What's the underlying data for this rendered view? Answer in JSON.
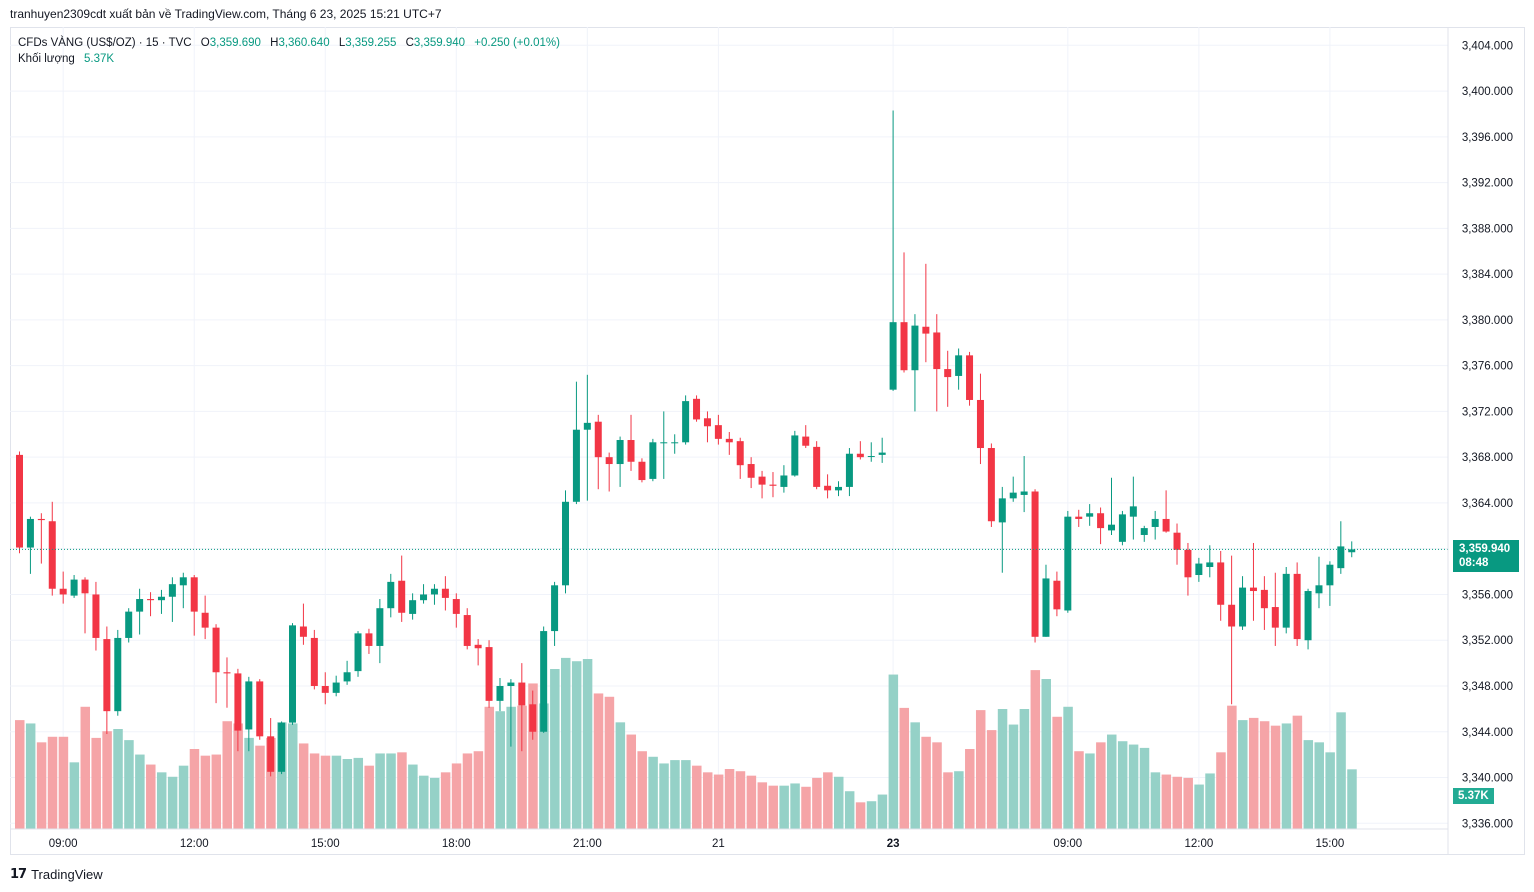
{
  "header": {
    "published_by": "tranhuyen2309cdt xuất bản về TradingView.com, Tháng 6 23, 2025 15:21 UTC+7"
  },
  "legend": {
    "symbol": "CFDs VÀNG (US$/OZ) · 15 · TVC",
    "open_label": "O",
    "open": "3,359.690",
    "high_label": "H",
    "high": "3,360.640",
    "low_label": "L",
    "low": "3,359.255",
    "close_label": "C",
    "close": "3,359.940",
    "change": "+0.250 (+0.01%)",
    "volume_label": "Khối lượng",
    "volume": "5.37K"
  },
  "last_price": {
    "price": "3,359.940",
    "countdown": "08:48"
  },
  "volume_tag": "5.37K",
  "footer": {
    "brand": "TradingView",
    "logo_icon": "tradingview-logo-icon"
  },
  "colors": {
    "up": "#089981",
    "down": "#f23645",
    "volume_up": "#95d1c7",
    "volume_down": "#f5a4a7",
    "grid": "#f0f3fa"
  },
  "chart_data": {
    "type": "candlestick",
    "interval": "15",
    "y_axis": {
      "ticks": [
        3336,
        3340,
        3344,
        3348,
        3352,
        3356,
        3360,
        3364,
        3368,
        3372,
        3376,
        3380,
        3384,
        3388,
        3392,
        3396,
        3400,
        3404
      ],
      "tick_labels": [
        "3,336.000",
        "3,340.000",
        "3,344.000",
        "3,348.000",
        "3,352.000",
        "3,356.000",
        "3,360.000",
        "3,364.000",
        "3,368.000",
        "3,372.000",
        "3,376.000",
        "3,380.000",
        "3,384.000",
        "3,388.000",
        "3,392.000",
        "3,396.000",
        "3,400.000",
        "3,404.000"
      ],
      "range": [
        3335.5,
        3405.6
      ]
    },
    "x_axis": {
      "labels": [
        {
          "text": "09:00",
          "index": 4
        },
        {
          "text": "12:00",
          "index": 16
        },
        {
          "text": "15:00",
          "index": 28
        },
        {
          "text": "18:00",
          "index": 40
        },
        {
          "text": "21:00",
          "index": 52
        },
        {
          "text": "21",
          "index": 64
        },
        {
          "text": "23",
          "index": 80,
          "bold": true
        },
        {
          "text": "09:00",
          "index": 96
        },
        {
          "text": "12:00",
          "index": 108
        },
        {
          "text": "15:00",
          "index": 120
        }
      ]
    },
    "grid": true,
    "volume_max": 18000,
    "candles": [
      [
        3368.2,
        3368.5,
        3359.6,
        3360.1,
        9800
      ],
      [
        3360.1,
        3362.8,
        3357.8,
        3362.6,
        9500
      ],
      [
        3362.6,
        3363.1,
        3358.7,
        3362.5,
        7800
      ],
      [
        3362.4,
        3364.1,
        3355.9,
        3356.5,
        8300
      ],
      [
        3356.5,
        3358.0,
        3355.2,
        3356.0,
        8300
      ],
      [
        3355.9,
        3357.7,
        3355.7,
        3357.3,
        6000
      ],
      [
        3357.3,
        3357.5,
        3352.6,
        3356.1,
        11000
      ],
      [
        3356.0,
        3357.1,
        3351.1,
        3352.2,
        8200
      ],
      [
        3352.1,
        3353.2,
        3343.8,
        3345.8,
        8800
      ],
      [
        3345.8,
        3352.9,
        3345.4,
        3352.2,
        9000
      ],
      [
        3352.2,
        3354.8,
        3351.8,
        3354.5,
        8000
      ],
      [
        3354.5,
        3356.5,
        3352.5,
        3355.6,
        6700
      ],
      [
        3355.6,
        3356.2,
        3354.1,
        3355.5,
        5800
      ],
      [
        3355.5,
        3356.4,
        3354.3,
        3355.8,
        5100
      ],
      [
        3355.8,
        3357.5,
        3353.6,
        3356.9,
        4700
      ],
      [
        3356.8,
        3357.9,
        3354.8,
        3357.5,
        5700
      ],
      [
        3357.5,
        3357.7,
        3352.4,
        3354.5,
        7200
      ],
      [
        3354.4,
        3355.9,
        3352.1,
        3353.1,
        6600
      ],
      [
        3353.1,
        3353.4,
        3346.5,
        3349.2,
        6700
      ],
      [
        3349.2,
        3350.5,
        3346.1,
        3349.1,
        9700
      ],
      [
        3349.1,
        3349.5,
        3342.3,
        3344.1,
        9500
      ],
      [
        3344.2,
        3348.8,
        3342.3,
        3348.4,
        8200
      ],
      [
        3348.4,
        3348.6,
        3343.3,
        3343.6,
        7500
      ],
      [
        3343.6,
        3345.2,
        3340.1,
        3340.5,
        8200
      ],
      [
        3340.5,
        3344.9,
        3340.3,
        3344.8,
        9600
      ],
      [
        3344.8,
        3353.5,
        3344.6,
        3353.3,
        9500
      ],
      [
        3353.2,
        3355.2,
        3351.6,
        3352.3,
        7700
      ],
      [
        3352.2,
        3352.9,
        3347.7,
        3348.0,
        6800
      ],
      [
        3348.0,
        3349.2,
        3346.4,
        3347.4,
        6600
      ],
      [
        3347.4,
        3348.9,
        3347.1,
        3348.3,
        6600
      ],
      [
        3348.4,
        3350.2,
        3348.1,
        3349.2,
        6300
      ],
      [
        3349.3,
        3352.8,
        3348.8,
        3352.6,
        6400
      ],
      [
        3352.6,
        3353.0,
        3350.8,
        3351.5,
        5700
      ],
      [
        3351.5,
        3355.6,
        3350.0,
        3354.8,
        6800
      ],
      [
        3354.8,
        3357.8,
        3354.0,
        3357.1,
        6800
      ],
      [
        3357.2,
        3359.4,
        3353.6,
        3354.4,
        6900
      ],
      [
        3354.3,
        3356.1,
        3353.8,
        3355.5,
        5800
      ],
      [
        3355.5,
        3356.9,
        3355.2,
        3356.0,
        4800
      ],
      [
        3356.0,
        3356.9,
        3355.1,
        3356.5,
        4600
      ],
      [
        3356.5,
        3357.6,
        3354.6,
        3355.7,
        5100
      ],
      [
        3355.6,
        3356.1,
        3353.1,
        3354.3,
        5900
      ],
      [
        3354.2,
        3354.8,
        3351.2,
        3351.5,
        6800
      ],
      [
        3351.6,
        3352.1,
        3349.8,
        3351.3,
        7000
      ],
      [
        3351.4,
        3352.0,
        3346.1,
        3346.7,
        11000
      ],
      [
        3346.7,
        3348.7,
        3345.8,
        3348.0,
        10600
      ],
      [
        3348.0,
        3348.6,
        3342.7,
        3348.3,
        11000
      ],
      [
        3348.3,
        3350.0,
        3342.3,
        3346.3,
        11100
      ],
      [
        3346.4,
        3347.6,
        3343.3,
        3344.0,
        13100
      ],
      [
        3344.0,
        3353.2,
        3343.9,
        3352.8,
        11300
      ],
      [
        3352.8,
        3357.1,
        3351.5,
        3356.8,
        14400
      ],
      [
        3356.8,
        3365.1,
        3356.1,
        3364.1,
        15400
      ],
      [
        3364.1,
        3374.6,
        3363.9,
        3370.4,
        15100
      ],
      [
        3370.4,
        3375.2,
        3364.2,
        3371.0,
        15300
      ],
      [
        3371.1,
        3371.7,
        3365.2,
        3368.0,
        12200
      ],
      [
        3368.0,
        3368.4,
        3365.0,
        3367.4,
        11900
      ],
      [
        3367.4,
        3369.8,
        3365.4,
        3369.5,
        9600
      ],
      [
        3369.5,
        3371.7,
        3366.8,
        3367.6,
        8500
      ],
      [
        3367.6,
        3367.9,
        3365.8,
        3366.0,
        7000
      ],
      [
        3366.1,
        3369.6,
        3365.9,
        3369.3,
        6500
      ],
      [
        3369.3,
        3372.0,
        3366.1,
        3369.3,
        5900
      ],
      [
        3369.3,
        3370.0,
        3368.3,
        3369.3,
        6200
      ],
      [
        3369.3,
        3373.4,
        3369.1,
        3372.9,
        6200
      ],
      [
        3373.1,
        3373.4,
        3371.1,
        3371.3,
        5700
      ],
      [
        3371.4,
        3372.0,
        3369.3,
        3370.7,
        5100
      ],
      [
        3370.8,
        3371.7,
        3369.1,
        3369.6,
        4900
      ],
      [
        3369.6,
        3370.2,
        3368.2,
        3369.3,
        5400
      ],
      [
        3369.4,
        3369.7,
        3366.1,
        3367.3,
        5200
      ],
      [
        3367.4,
        3368.0,
        3365.3,
        3366.2,
        4800
      ],
      [
        3366.3,
        3366.8,
        3364.4,
        3365.6,
        4200
      ],
      [
        3365.6,
        3366.7,
        3364.5,
        3365.5,
        3900
      ],
      [
        3365.4,
        3367.3,
        3364.9,
        3366.4,
        3900
      ],
      [
        3366.4,
        3370.3,
        3366.3,
        3369.9,
        4100
      ],
      [
        3369.8,
        3370.8,
        3368.8,
        3369.0,
        3800
      ],
      [
        3368.9,
        3369.4,
        3365.2,
        3365.4,
        4600
      ],
      [
        3365.5,
        3366.5,
        3364.4,
        3365.1,
        5100
      ],
      [
        3365.1,
        3365.9,
        3364.6,
        3365.4,
        4700
      ],
      [
        3365.4,
        3368.8,
        3364.6,
        3368.3,
        3400
      ],
      [
        3368.3,
        3369.4,
        3367.8,
        3368.0,
        2400
      ],
      [
        3368.1,
        3369.3,
        3367.6,
        3368.1,
        2500
      ],
      [
        3368.2,
        3369.7,
        3367.5,
        3368.4,
        3100
      ],
      [
        3373.9,
        3398.3,
        3373.8,
        3379.8,
        13900
      ],
      [
        3379.8,
        3385.9,
        3375.4,
        3375.6,
        10900
      ],
      [
        3375.6,
        3380.5,
        3372.0,
        3379.5,
        9600
      ],
      [
        3379.4,
        3384.9,
        3376.3,
        3378.8,
        8300
      ],
      [
        3378.9,
        3380.5,
        3372.0,
        3375.7,
        7800
      ],
      [
        3375.7,
        3377.3,
        3372.4,
        3375.0,
        5100
      ],
      [
        3375.1,
        3377.5,
        3373.9,
        3376.9,
        5200
      ],
      [
        3376.9,
        3377.2,
        3372.5,
        3373.0,
        7200
      ],
      [
        3373.0,
        3375.3,
        3367.4,
        3368.8,
        10700
      ],
      [
        3368.8,
        3369.2,
        3361.9,
        3362.4,
        8900
      ],
      [
        3362.3,
        3365.4,
        3357.9,
        3364.4,
        10800
      ],
      [
        3364.4,
        3366.3,
        3364.1,
        3364.9,
        9400
      ],
      [
        3364.7,
        3368.1,
        3363.2,
        3365.0,
        10800
      ],
      [
        3365.0,
        3365.2,
        3351.8,
        3352.3,
        14300
      ],
      [
        3352.3,
        3358.6,
        3352.3,
        3357.4,
        13500
      ],
      [
        3357.2,
        3358.0,
        3354.1,
        3354.7,
        10100
      ],
      [
        3354.6,
        3363.3,
        3354.4,
        3362.8,
        11000
      ],
      [
        3362.8,
        3363.4,
        3361.9,
        3362.6,
        7000
      ],
      [
        3362.8,
        3363.9,
        3362.0,
        3363.1,
        6800
      ],
      [
        3363.1,
        3363.6,
        3360.4,
        3361.8,
        7800
      ],
      [
        3361.6,
        3366.2,
        3361.2,
        3362.1,
        8500
      ],
      [
        3360.6,
        3363.3,
        3360.3,
        3363.0,
        7900
      ],
      [
        3362.8,
        3366.3,
        3360.8,
        3363.7,
        7600
      ],
      [
        3361.2,
        3362.0,
        3360.6,
        3361.8,
        7300
      ],
      [
        3361.9,
        3363.3,
        3360.8,
        3362.6,
        5100
      ],
      [
        3362.6,
        3365.1,
        3361.4,
        3361.5,
        4900
      ],
      [
        3361.4,
        3362.2,
        3358.6,
        3359.9,
        4700
      ],
      [
        3359.9,
        3360.5,
        3355.9,
        3357.5,
        4600
      ],
      [
        3357.7,
        3359.2,
        3357.1,
        3358.7,
        4000
      ],
      [
        3358.4,
        3360.3,
        3357.5,
        3358.8,
        5000
      ],
      [
        3358.8,
        3359.8,
        3353.7,
        3355.1,
        6900
      ],
      [
        3355.1,
        3359.4,
        3346.4,
        3353.2,
        11100
      ],
      [
        3353.2,
        3357.6,
        3352.9,
        3356.6,
        9800
      ],
      [
        3356.6,
        3360.5,
        3353.7,
        3356.3,
        10000
      ],
      [
        3356.4,
        3357.6,
        3352.9,
        3354.8,
        9700
      ],
      [
        3354.9,
        3357.9,
        3351.5,
        3353.1,
        9300
      ],
      [
        3353.1,
        3358.4,
        3352.6,
        3357.8,
        9500
      ],
      [
        3357.8,
        3358.8,
        3351.5,
        3352.1,
        10200
      ],
      [
        3352.0,
        3356.5,
        3351.2,
        3356.3,
        8000
      ],
      [
        3356.1,
        3359.3,
        3354.8,
        3356.8,
        7800
      ],
      [
        3356.8,
        3358.9,
        3355.0,
        3358.6,
        6900
      ],
      [
        3358.3,
        3362.4,
        3357.8,
        3360.2,
        10500
      ],
      [
        3359.69,
        3360.64,
        3359.255,
        3359.94,
        5370
      ]
    ]
  }
}
